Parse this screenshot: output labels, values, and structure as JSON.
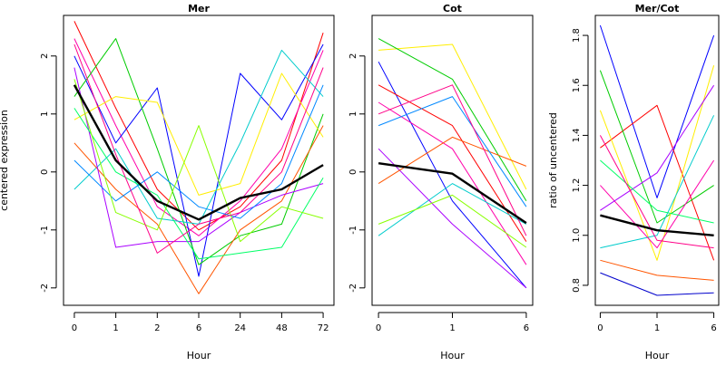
{
  "chart_data": [
    {
      "type": "line",
      "title": "Mer",
      "xlabel": "Hour",
      "ylabel": "centered expression",
      "categories": [
        "0",
        "1",
        "2",
        "6",
        "24",
        "48",
        "72"
      ],
      "ylim": [
        -2.3,
        2.7
      ],
      "yticks": [
        -2,
        -1,
        0,
        1,
        2
      ],
      "series": [
        {
          "role": "mean",
          "color": "#000000",
          "values": [
            1.5,
            0.2,
            -0.5,
            -0.82,
            -0.45,
            -0.3,
            0.12
          ]
        },
        {
          "color": "#ff0000",
          "values": [
            2.6,
            1.1,
            -0.3,
            -1.0,
            -0.6,
            0.2,
            2.4
          ]
        },
        {
          "color": "#ff00aa",
          "values": [
            2.3,
            0.8,
            -0.6,
            -1.1,
            -0.5,
            0.4,
            2.1
          ]
        },
        {
          "color": "#0000ff",
          "values": [
            2.0,
            0.5,
            1.45,
            -1.8,
            1.7,
            0.9,
            2.2
          ]
        },
        {
          "color": "#00cc00",
          "values": [
            1.3,
            2.3,
            0.4,
            -1.6,
            -1.1,
            -0.9,
            1.0
          ]
        },
        {
          "color": "#ffee00",
          "values": [
            0.9,
            1.3,
            1.2,
            -0.4,
            -0.2,
            1.7,
            0.6
          ]
        },
        {
          "color": "#00cccc",
          "values": [
            -0.3,
            0.4,
            -0.8,
            -0.9,
            0.5,
            2.1,
            1.3
          ]
        },
        {
          "color": "#ff5500",
          "values": [
            0.5,
            -0.3,
            -0.9,
            -2.1,
            -1.0,
            -0.5,
            0.8
          ]
        },
        {
          "color": "#aa00ff",
          "values": [
            1.8,
            -1.3,
            -1.2,
            -1.2,
            -0.7,
            -0.4,
            -0.2
          ]
        },
        {
          "color": "#00ff66",
          "values": [
            1.1,
            0.0,
            -0.4,
            -1.5,
            -1.4,
            -1.3,
            -0.1
          ]
        },
        {
          "color": "#0088ff",
          "values": [
            0.2,
            -0.5,
            0.0,
            -0.6,
            -0.8,
            -0.2,
            1.5
          ]
        },
        {
          "color": "#88ff00",
          "values": [
            1.6,
            -0.7,
            -1.0,
            0.8,
            -1.2,
            -0.6,
            -0.8
          ]
        },
        {
          "color": "#ff0088",
          "values": [
            2.2,
            0.3,
            -1.4,
            -0.9,
            -0.7,
            0.0,
            1.8
          ]
        }
      ]
    },
    {
      "type": "line",
      "title": "Cot",
      "xlabel": "Hour",
      "ylabel": "",
      "categories": [
        "0",
        "1",
        "6"
      ],
      "ylim": [
        -2.3,
        2.7
      ],
      "yticks": [
        -2,
        -1,
        0,
        1,
        2
      ],
      "series": [
        {
          "role": "mean",
          "color": "#000000",
          "values": [
            0.15,
            -0.03,
            -0.88
          ]
        },
        {
          "color": "#ffee00",
          "values": [
            2.1,
            2.2,
            -0.3
          ]
        },
        {
          "color": "#00cc00",
          "values": [
            2.3,
            1.6,
            -0.5
          ]
        },
        {
          "color": "#0000ff",
          "values": [
            1.9,
            -0.5,
            -2.0
          ]
        },
        {
          "color": "#ff0000",
          "values": [
            1.5,
            0.8,
            -1.2
          ]
        },
        {
          "color": "#ff00aa",
          "values": [
            1.2,
            0.4,
            -1.6
          ]
        },
        {
          "color": "#00cccc",
          "values": [
            -1.1,
            -0.2,
            -0.9
          ]
        },
        {
          "color": "#aa00ff",
          "values": [
            0.4,
            -0.9,
            -2.0
          ]
        },
        {
          "color": "#ff5500",
          "values": [
            -0.2,
            0.6,
            0.1
          ]
        },
        {
          "color": "#0088ff",
          "values": [
            0.8,
            1.3,
            -0.6
          ]
        },
        {
          "color": "#88ff00",
          "values": [
            -0.9,
            -0.4,
            -1.3
          ]
        },
        {
          "color": "#ff0088",
          "values": [
            1.0,
            1.5,
            -1.1
          ]
        }
      ]
    },
    {
      "type": "line",
      "title": "Mer/Cot",
      "xlabel": "Hour",
      "ylabel": "ratio of uncentered",
      "categories": [
        "0",
        "1",
        "6"
      ],
      "ylim": [
        0.72,
        1.88
      ],
      "yticks": [
        0.8,
        1.0,
        1.2,
        1.4,
        1.6,
        1.8
      ],
      "series": [
        {
          "role": "mean",
          "color": "#000000",
          "values": [
            1.08,
            1.02,
            1.0
          ]
        },
        {
          "color": "#0000ff",
          "values": [
            1.84,
            1.15,
            1.8
          ]
        },
        {
          "color": "#0000cc",
          "values": [
            0.85,
            0.76,
            0.77
          ]
        },
        {
          "color": "#ff0000",
          "values": [
            1.35,
            1.52,
            0.9
          ]
        },
        {
          "color": "#00cc00",
          "values": [
            1.66,
            1.05,
            1.2
          ]
        },
        {
          "color": "#ffee00",
          "values": [
            1.5,
            0.9,
            1.68
          ]
        },
        {
          "color": "#00cccc",
          "values": [
            0.95,
            1.0,
            1.48
          ]
        },
        {
          "color": "#ff00aa",
          "values": [
            1.2,
            0.95,
            1.3
          ]
        },
        {
          "color": "#aa00ff",
          "values": [
            1.1,
            1.25,
            1.6
          ]
        },
        {
          "color": "#ff5500",
          "values": [
            0.9,
            0.84,
            0.82
          ]
        },
        {
          "color": "#00ff66",
          "values": [
            1.3,
            1.1,
            1.05
          ]
        },
        {
          "color": "#ff0088",
          "values": [
            1.4,
            0.98,
            0.95
          ]
        }
      ]
    }
  ]
}
